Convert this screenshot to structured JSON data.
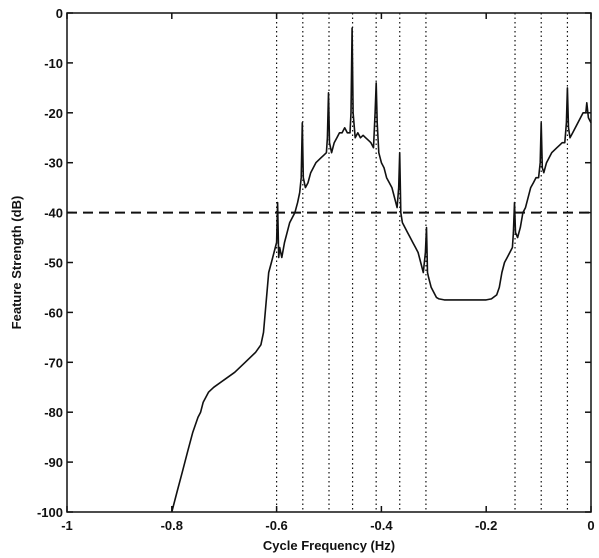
{
  "chart_data": {
    "type": "line",
    "title": "",
    "xlabel": "Cycle Frequency (Hz)",
    "ylabel": "Feature Strength (dB)",
    "xlim": [
      -1,
      0
    ],
    "ylim": [
      -100,
      0
    ],
    "x_ticks": [
      -1,
      -0.8,
      -0.6,
      -0.4,
      -0.2,
      0
    ],
    "x_tick_labels": [
      "-1",
      "-0.8",
      "-0.6",
      "-0.4",
      "-0.2",
      "0"
    ],
    "y_ticks": [
      0,
      -10,
      -20,
      -30,
      -40,
      -50,
      -60,
      -70,
      -80,
      -90,
      -100
    ],
    "y_tick_labels": [
      "0",
      "-10",
      "-20",
      "-30",
      "-40",
      "-50",
      "-60",
      "-70",
      "-80",
      "-90",
      "-100"
    ],
    "grid": false,
    "threshold": {
      "y": -40,
      "style": "dashed"
    },
    "vertical_markers": [
      -0.6,
      -0.55,
      -0.5,
      -0.455,
      -0.41,
      -0.365,
      -0.315,
      -0.145,
      -0.095,
      -0.045
    ],
    "series": [
      {
        "values": [
          [
            -0.8,
            -100
          ],
          [
            -0.79,
            -96
          ],
          [
            -0.78,
            -92
          ],
          [
            -0.77,
            -88
          ],
          [
            -0.76,
            -84
          ],
          [
            -0.75,
            -81
          ],
          [
            -0.745,
            -80
          ],
          [
            -0.74,
            -78
          ],
          [
            -0.73,
            -76
          ],
          [
            -0.72,
            -75
          ],
          [
            -0.7,
            -73.5
          ],
          [
            -0.68,
            -72
          ],
          [
            -0.66,
            -70
          ],
          [
            -0.64,
            -68
          ],
          [
            -0.63,
            -66.5
          ],
          [
            -0.625,
            -64
          ],
          [
            -0.62,
            -58
          ],
          [
            -0.615,
            -52
          ],
          [
            -0.61,
            -50
          ],
          [
            -0.605,
            -48
          ],
          [
            -0.6,
            -46
          ],
          [
            -0.598,
            -38
          ],
          [
            -0.596,
            -49
          ],
          [
            -0.594,
            -47
          ],
          [
            -0.59,
            -49
          ],
          [
            -0.585,
            -46
          ],
          [
            -0.58,
            -44
          ],
          [
            -0.575,
            -42
          ],
          [
            -0.57,
            -41
          ],
          [
            -0.565,
            -40
          ],
          [
            -0.56,
            -38
          ],
          [
            -0.556,
            -36
          ],
          [
            -0.553,
            -33
          ],
          [
            -0.551,
            -22
          ],
          [
            -0.549,
            -33
          ],
          [
            -0.545,
            -35
          ],
          [
            -0.54,
            -34
          ],
          [
            -0.535,
            -32
          ],
          [
            -0.53,
            -31
          ],
          [
            -0.525,
            -30
          ],
          [
            -0.52,
            -29.5
          ],
          [
            -0.515,
            -29
          ],
          [
            -0.51,
            -28.5
          ],
          [
            -0.505,
            -28
          ],
          [
            -0.503,
            -25
          ],
          [
            -0.501,
            -16
          ],
          [
            -0.499,
            -26
          ],
          [
            -0.495,
            -28
          ],
          [
            -0.49,
            -26
          ],
          [
            -0.485,
            -25
          ],
          [
            -0.48,
            -24
          ],
          [
            -0.475,
            -24
          ],
          [
            -0.47,
            -23
          ],
          [
            -0.465,
            -24
          ],
          [
            -0.46,
            -24
          ],
          [
            -0.458,
            -20
          ],
          [
            -0.456,
            -3
          ],
          [
            -0.454,
            -20
          ],
          [
            -0.45,
            -25
          ],
          [
            -0.445,
            -24
          ],
          [
            -0.44,
            -25
          ],
          [
            -0.435,
            -24.5
          ],
          [
            -0.43,
            -25
          ],
          [
            -0.425,
            -25.5
          ],
          [
            -0.42,
            -26
          ],
          [
            -0.415,
            -27
          ],
          [
            -0.412,
            -20
          ],
          [
            -0.41,
            -14
          ],
          [
            -0.408,
            -22
          ],
          [
            -0.405,
            -28
          ],
          [
            -0.4,
            -30
          ],
          [
            -0.395,
            -31
          ],
          [
            -0.39,
            -33
          ],
          [
            -0.385,
            -34
          ],
          [
            -0.38,
            -35
          ],
          [
            -0.375,
            -37
          ],
          [
            -0.37,
            -39
          ],
          [
            -0.367,
            -35
          ],
          [
            -0.365,
            -28
          ],
          [
            -0.363,
            -40
          ],
          [
            -0.36,
            -42
          ],
          [
            -0.355,
            -43
          ],
          [
            -0.35,
            -44
          ],
          [
            -0.345,
            -45
          ],
          [
            -0.34,
            -46
          ],
          [
            -0.335,
            -47
          ],
          [
            -0.33,
            -48
          ],
          [
            -0.325,
            -50
          ],
          [
            -0.32,
            -52
          ],
          [
            -0.316,
            -48
          ],
          [
            -0.314,
            -43
          ],
          [
            -0.312,
            -52
          ],
          [
            -0.31,
            -53
          ],
          [
            -0.305,
            -55
          ],
          [
            -0.3,
            -56
          ],
          [
            -0.295,
            -57
          ],
          [
            -0.29,
            -57.3
          ],
          [
            -0.28,
            -57.5
          ],
          [
            -0.26,
            -57.5
          ],
          [
            -0.24,
            -57.5
          ],
          [
            -0.22,
            -57.5
          ],
          [
            -0.2,
            -57.5
          ],
          [
            -0.19,
            -57.3
          ],
          [
            -0.18,
            -56.5
          ],
          [
            -0.175,
            -55
          ],
          [
            -0.17,
            -52
          ],
          [
            -0.165,
            -50
          ],
          [
            -0.16,
            -49
          ],
          [
            -0.155,
            -48
          ],
          [
            -0.15,
            -47
          ],
          [
            -0.148,
            -44
          ],
          [
            -0.146,
            -38
          ],
          [
            -0.144,
            -44
          ],
          [
            -0.14,
            -45
          ],
          [
            -0.135,
            -43
          ],
          [
            -0.13,
            -40
          ],
          [
            -0.125,
            -39
          ],
          [
            -0.12,
            -37
          ],
          [
            -0.115,
            -35
          ],
          [
            -0.11,
            -34
          ],
          [
            -0.105,
            -33
          ],
          [
            -0.1,
            -33
          ],
          [
            -0.097,
            -30
          ],
          [
            -0.095,
            -22
          ],
          [
            -0.093,
            -31
          ],
          [
            -0.09,
            -32
          ],
          [
            -0.085,
            -30
          ],
          [
            -0.08,
            -29
          ],
          [
            -0.075,
            -28
          ],
          [
            -0.07,
            -27.5
          ],
          [
            -0.065,
            -27
          ],
          [
            -0.06,
            -26.5
          ],
          [
            -0.055,
            -26
          ],
          [
            -0.05,
            -26
          ],
          [
            -0.047,
            -22
          ],
          [
            -0.045,
            -15
          ],
          [
            -0.043,
            -23
          ],
          [
            -0.04,
            -25
          ],
          [
            -0.035,
            -24
          ],
          [
            -0.03,
            -23
          ],
          [
            -0.025,
            -22
          ],
          [
            -0.02,
            -21
          ],
          [
            -0.015,
            -20
          ],
          [
            -0.01,
            -20
          ],
          [
            -0.008,
            -18
          ],
          [
            -0.005,
            -21
          ],
          [
            0,
            -22
          ]
        ]
      }
    ]
  }
}
